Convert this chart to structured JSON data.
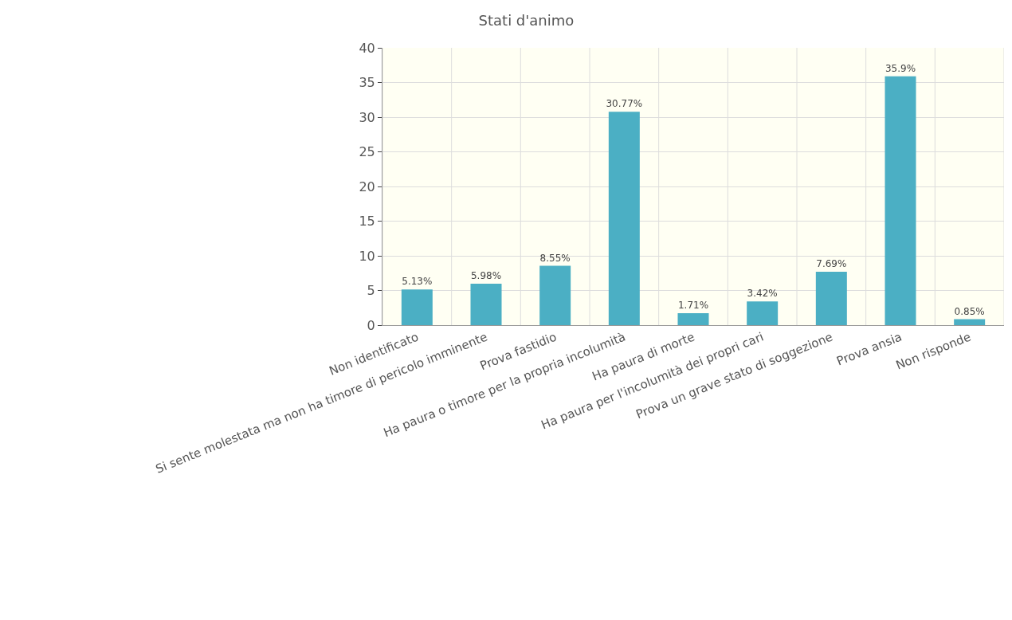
{
  "chart_data": {
    "type": "bar",
    "title": "Stati d'animo",
    "categories": [
      "Non identificato",
      "Si sente molestata ma non ha timore di pericolo imminente",
      "Prova fastidio",
      "Ha paura o timore per la propria incolumità",
      "Ha paura di morte",
      "Ha paura per l'incolumità dei propri cari",
      "Prova un grave stato di soggezione",
      "Prova ansia",
      "Non risponde"
    ],
    "values": [
      5.13,
      5.98,
      8.55,
      30.77,
      1.71,
      3.42,
      7.69,
      35.9,
      0.85
    ],
    "value_labels": [
      "5.13%",
      "5.98%",
      "8.55%",
      "30.77%",
      "1.71%",
      "3.42%",
      "7.69%",
      "35.9%",
      "0.85%"
    ],
    "color": "#4bafc4",
    "ylim": [
      0,
      40
    ],
    "yticks": [
      0,
      5,
      10,
      15,
      20,
      25,
      30,
      35,
      40
    ],
    "grid": true
  }
}
